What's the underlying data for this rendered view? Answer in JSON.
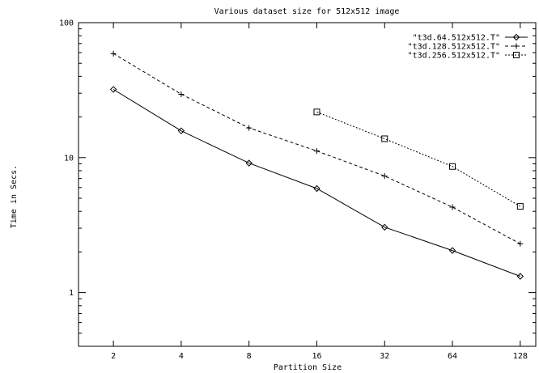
{
  "chart_data": {
    "type": "line",
    "title": "Various dataset size for 512x512 image",
    "xlabel": "Partition Size",
    "ylabel": "Time in Secs.",
    "x_scale": "log2",
    "y_scale": "log10",
    "xlim": [
      1.4,
      150
    ],
    "ylim": [
      0.4,
      100
    ],
    "x_ticks": [
      2,
      4,
      8,
      16,
      32,
      64,
      128
    ],
    "x_tick_labels": [
      "2",
      "4",
      "8",
      "16",
      "32",
      "64",
      "128"
    ],
    "y_ticks": [
      1,
      10,
      100
    ],
    "y_tick_labels": [
      "1",
      "10",
      "100"
    ],
    "grid": false,
    "legend_position": "top-right",
    "series": [
      {
        "name": "\"t3d.64.512x512.T\"",
        "marker": "diamond",
        "line_style": "solid",
        "x": [
          2,
          4,
          8,
          16,
          32,
          64,
          128
        ],
        "y": [
          32,
          15.8,
          9.1,
          5.9,
          3.05,
          2.05,
          1.32
        ]
      },
      {
        "name": "\"t3d.128.512x512.T\"",
        "marker": "plus",
        "line_style": "dashed",
        "x": [
          2,
          4,
          8,
          16,
          32,
          64,
          128
        ],
        "y": [
          59,
          29.5,
          16.6,
          11.2,
          7.3,
          4.3,
          2.3
        ]
      },
      {
        "name": "\"t3d.256.512x512.T\"",
        "marker": "square",
        "line_style": "dotted",
        "x": [
          16,
          32,
          64,
          128
        ],
        "y": [
          21.8,
          13.8,
          8.6,
          4.35
        ]
      }
    ]
  }
}
